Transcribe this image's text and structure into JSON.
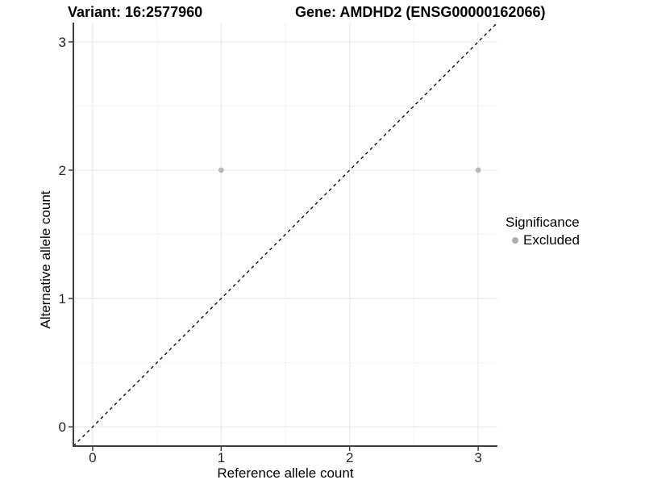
{
  "header": {
    "variant_title": "Variant: 16:2577960",
    "gene_title": "Gene: AMDHD2 (ENSG00000162066)"
  },
  "chart_data": {
    "type": "scatter",
    "xlabel": "Reference allele count",
    "ylabel": "Alternative allele count",
    "xlim": [
      -0.15,
      3.15
    ],
    "ylim": [
      -0.15,
      3.15
    ],
    "xticks": [
      0,
      1,
      2,
      3
    ],
    "yticks": [
      0,
      1,
      2,
      3
    ],
    "minor_xticks": [
      0.5,
      1.5,
      2.5
    ],
    "minor_yticks": [
      0.5,
      1.5,
      2.5
    ],
    "grid": "major+minor",
    "identity_line": {
      "slope": 1,
      "intercept": 0,
      "style": "dashed",
      "color": "#000000"
    },
    "series": [
      {
        "name": "Excluded",
        "color": "#b9b9b9",
        "points": [
          {
            "x": 1,
            "y": 2
          },
          {
            "x": 3,
            "y": 2
          }
        ]
      }
    ],
    "legend": {
      "title": "Significance",
      "position": "right",
      "items": [
        {
          "label": "Excluded",
          "color": "#aeaeae"
        }
      ]
    },
    "colors": {
      "background": "#ffffff",
      "grid_major": "#e6e6e6",
      "grid_minor": "#f3f3f3",
      "axis_line": "#404040",
      "tick_mark": "#404040",
      "tick_text": "#262626"
    }
  }
}
